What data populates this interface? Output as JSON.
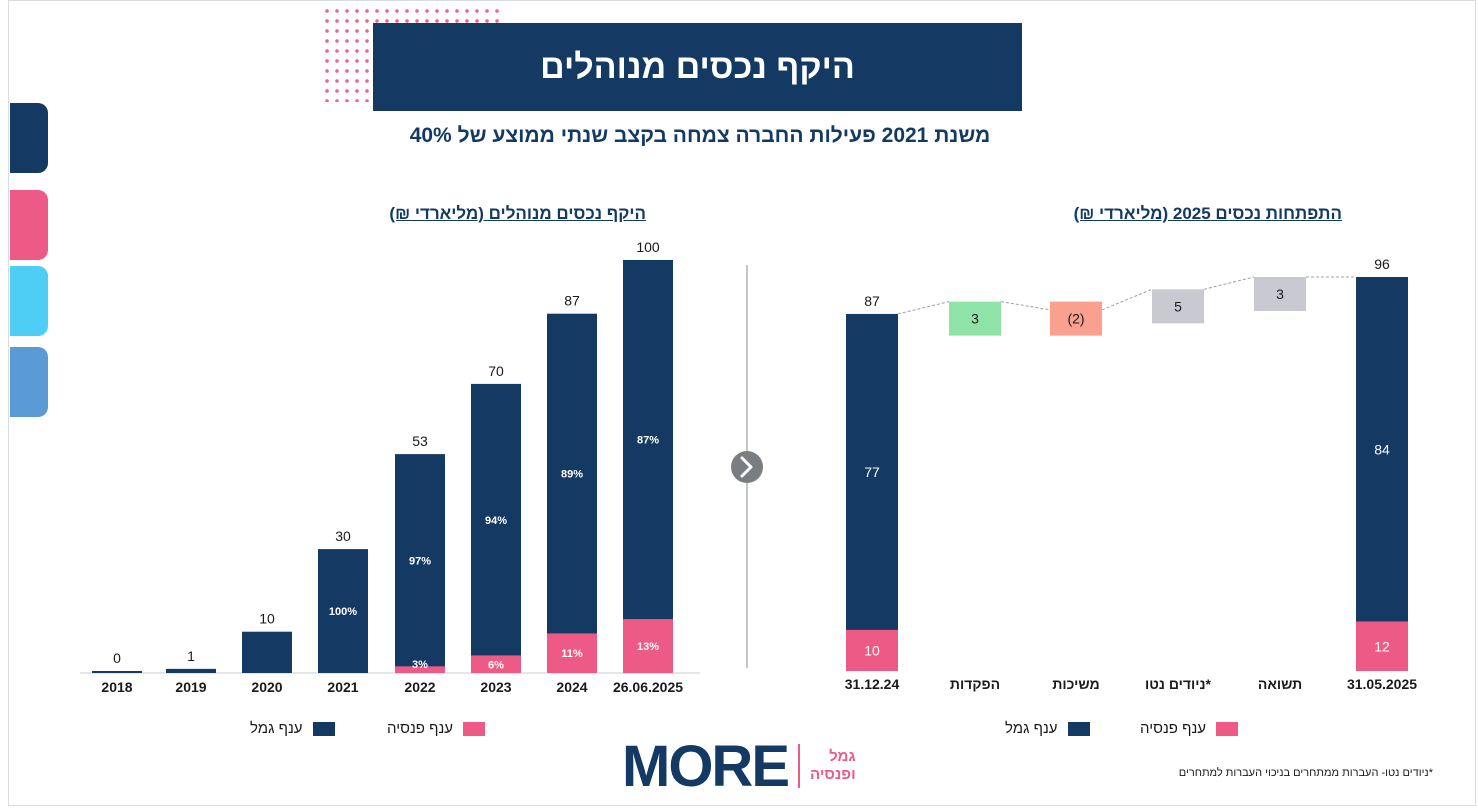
{
  "header": {
    "title": "היקף נכסים מנוהלים"
  },
  "subtitle": "משנת 2021 פעילות החברה צמחה בקצב שנתי ממוצע של 40%",
  "colors": {
    "navy": "#143a63",
    "pink": "#ee5a86",
    "green": "#8fe3a8",
    "salmon": "#f9a08e",
    "grey": "#c9c9d1",
    "cyan": "#4fcef5",
    "blue": "#5a9bd5"
  },
  "legend": {
    "gemel": "ענף גמל",
    "pension": "ענף פנסיה"
  },
  "footnote": "*ניודים נטו- העברות ממתחרים בניכוי העברות למתחרים",
  "logo": {
    "word": "MORE",
    "line1": "גמל",
    "line2": "ופנסיה"
  },
  "nav_icon": "chevron-right-icon",
  "chart_data": [
    {
      "type": "bar",
      "title": "היקף נכסים מנוהלים (מליארדי ₪)",
      "categories": [
        "2018",
        "2019",
        "2020",
        "2021",
        "2022",
        "2023",
        "2024",
        "26.06.2025"
      ],
      "totals": [
        0,
        1,
        10,
        30,
        53,
        70,
        87,
        100
      ],
      "totals_labels": [
        "0",
        "1",
        "10",
        "30",
        "53",
        "70",
        "87",
        "100"
      ],
      "gemel_share": [
        1,
        1,
        1,
        1,
        0.97,
        0.94,
        0.89,
        0.87
      ],
      "gemel_pct_labels": [
        "",
        "",
        "",
        "100%",
        "97%",
        "94%",
        "89%",
        "87%"
      ],
      "pension_pct_labels": [
        "",
        "",
        "",
        "",
        "3%",
        "6%",
        "11%",
        "13%"
      ],
      "ylim": [
        0,
        100
      ],
      "series": [
        {
          "name": "ענף גמל"
        },
        {
          "name": "ענף פנסיה"
        }
      ]
    },
    {
      "type": "bar",
      "subtype": "waterfall",
      "title": "התפתחות נכסים 2025 (מליארדי ₪)",
      "categories": [
        "31.12.24",
        "הפקדות",
        "משיכות",
        "ניודים נטו*",
        "תשואה",
        "31.05.2025"
      ],
      "steps": [
        {
          "label": "31.12.24",
          "kind": "total",
          "gemel": 77,
          "pension": 10,
          "total": 87,
          "total_label": "87"
        },
        {
          "label": "הפקדות",
          "kind": "delta",
          "value": 3,
          "text": "3",
          "color": "#8fe3a8"
        },
        {
          "label": "משיכות",
          "kind": "delta",
          "value": -2,
          "text": "(2)",
          "color": "#f9a08e"
        },
        {
          "label": "ניודים נטו*",
          "kind": "delta",
          "value": 5,
          "text": "5",
          "color": "#c9c9d1"
        },
        {
          "label": "תשואה",
          "kind": "delta",
          "value": 3,
          "text": "3",
          "color": "#c9c9d1"
        },
        {
          "label": "31.05.2025",
          "kind": "total",
          "gemel": 84,
          "pension": 12,
          "total": 96,
          "total_label": "96"
        }
      ],
      "ylim": [
        0,
        96
      ],
      "series": [
        {
          "name": "ענף גמל"
        },
        {
          "name": "ענף פנסיה"
        }
      ]
    }
  ]
}
